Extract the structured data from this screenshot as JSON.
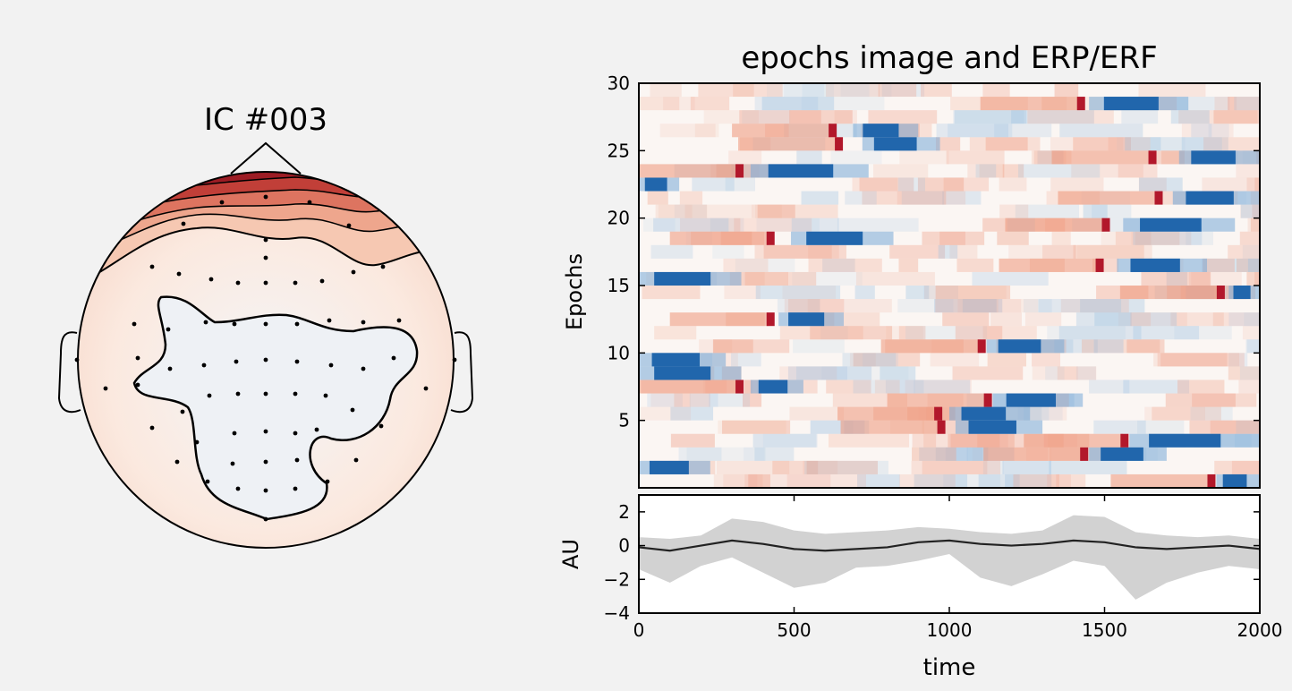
{
  "chart_data": [
    {
      "type": "topomap",
      "title": "IC #003",
      "sensor_count": 64,
      "colormap": "RdBu_r",
      "pattern": "strong positive loading at frontal region, near-zero elsewhere"
    },
    {
      "type": "heatmap",
      "title": "epochs image and ERP/ERF",
      "ylabel": "Epochs",
      "yticks": [
        5,
        10,
        15,
        20,
        25,
        30
      ],
      "ylim": [
        0,
        30
      ],
      "xlim": [
        0,
        2000
      ],
      "n_epochs": 30,
      "colormap": "RdBu_r",
      "events": [
        {
          "epoch": 1,
          "red": 1840,
          "blue_start": 1860,
          "blue_end": 2000
        },
        {
          "epoch": 2,
          "red": null,
          "blue_start": 0,
          "blue_end": 230
        },
        {
          "epoch": 3,
          "red": 1430,
          "blue_start": 1450,
          "blue_end": 1700
        },
        {
          "epoch": 4,
          "red": 1560,
          "blue_start": 1580,
          "blue_end": 2000
        },
        {
          "epoch": 5,
          "red": 970,
          "blue_start": 1020,
          "blue_end": 1300
        },
        {
          "epoch": 6,
          "red": 960,
          "blue_start": 1000,
          "blue_end": 1260
        },
        {
          "epoch": 7,
          "red": 1120,
          "blue_start": 1140,
          "blue_end": 1430
        },
        {
          "epoch": 8,
          "red": 320,
          "blue_start": 360,
          "blue_end": 530
        },
        {
          "epoch": 9,
          "red": null,
          "blue_start": 0,
          "blue_end": 330
        },
        {
          "epoch": 10,
          "red": null,
          "blue_start": 0,
          "blue_end": 280
        },
        {
          "epoch": 11,
          "red": 1100,
          "blue_start": 1120,
          "blue_end": 1370
        },
        {
          "epoch": 13,
          "red": 420,
          "blue_start": 450,
          "blue_end": 660
        },
        {
          "epoch": 15,
          "red": 1870,
          "blue_start": 1900,
          "blue_end": 2000
        },
        {
          "epoch": 16,
          "red": null,
          "blue_start": 0,
          "blue_end": 330
        },
        {
          "epoch": 17,
          "red": 1480,
          "blue_start": 1540,
          "blue_end": 1830
        },
        {
          "epoch": 19,
          "red": 420,
          "blue_start": 490,
          "blue_end": 820
        },
        {
          "epoch": 20,
          "red": 1500,
          "blue_start": 1560,
          "blue_end": 1920
        },
        {
          "epoch": 22,
          "red": 1670,
          "blue_start": 1720,
          "blue_end": 2000
        },
        {
          "epoch": 23,
          "red": null,
          "blue_start": 0,
          "blue_end": 130
        },
        {
          "epoch": 24,
          "red": 320,
          "blue_start": 360,
          "blue_end": 740
        },
        {
          "epoch": 25,
          "red": 1650,
          "blue_start": 1740,
          "blue_end": 2000
        },
        {
          "epoch": 26,
          "red": 640,
          "blue_start": 720,
          "blue_end": 970
        },
        {
          "epoch": 27,
          "red": 620,
          "blue_start": 690,
          "blue_end": 900
        },
        {
          "epoch": 29,
          "red": 1420,
          "blue_start": 1450,
          "blue_end": 1770
        }
      ]
    },
    {
      "type": "line",
      "xlabel": "time",
      "ylabel": "AU",
      "xlim": [
        0,
        2000
      ],
      "ylim": [
        -4,
        3
      ],
      "xticks": [
        0,
        500,
        1000,
        1500,
        2000
      ],
      "yticks": [
        2,
        0,
        -2,
        -4
      ],
      "ytick_labels": [
        "2",
        "0",
        "−2",
        "−4"
      ],
      "series": [
        {
          "kind": "mean",
          "x": [
            0,
            100,
            200,
            300,
            400,
            500,
            600,
            700,
            800,
            900,
            1000,
            1100,
            1200,
            1300,
            1400,
            1500,
            1600,
            1700,
            1800,
            1900,
            2000
          ],
          "y": [
            -0.1,
            -0.3,
            0.0,
            0.3,
            0.1,
            -0.2,
            -0.3,
            -0.2,
            -0.1,
            0.2,
            0.3,
            0.1,
            0.0,
            0.1,
            0.3,
            0.2,
            -0.1,
            -0.2,
            -0.1,
            0.0,
            -0.2
          ]
        },
        {
          "kind": "band",
          "x": [
            0,
            100,
            200,
            300,
            400,
            500,
            600,
            700,
            800,
            900,
            1000,
            1100,
            1200,
            1300,
            1400,
            1500,
            1600,
            1700,
            1800,
            1900,
            2000
          ],
          "upper": [
            0.5,
            0.4,
            0.6,
            1.6,
            1.4,
            0.9,
            0.7,
            0.8,
            0.9,
            1.1,
            1.0,
            0.8,
            0.7,
            0.9,
            1.8,
            1.7,
            0.8,
            0.6,
            0.5,
            0.6,
            0.4
          ],
          "lower": [
            -1.4,
            -2.2,
            -1.2,
            -0.7,
            -1.6,
            -2.5,
            -2.2,
            -1.3,
            -1.2,
            -0.9,
            -0.5,
            -1.9,
            -2.4,
            -1.7,
            -0.9,
            -1.2,
            -3.2,
            -2.2,
            -1.6,
            -1.2,
            -1.4
          ]
        }
      ]
    }
  ]
}
